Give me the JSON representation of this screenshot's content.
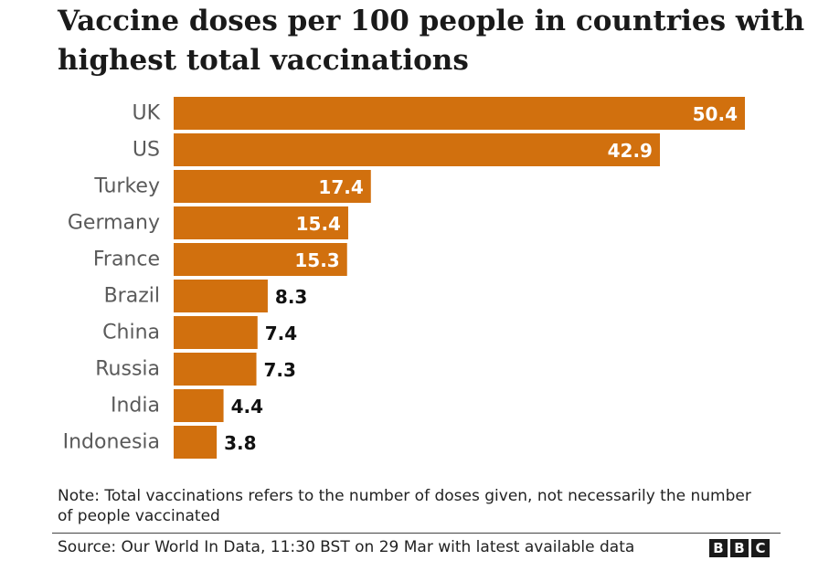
{
  "chart_data": {
    "type": "bar",
    "orientation": "horizontal",
    "title": "Vaccine doses per 100 people in countries with highest total vaccinations",
    "categories": [
      "UK",
      "US",
      "Turkey",
      "Germany",
      "France",
      "Brazil",
      "China",
      "Russia",
      "India",
      "Indonesia"
    ],
    "values": [
      50.4,
      42.9,
      17.4,
      15.4,
      15.3,
      8.3,
      7.4,
      7.3,
      4.4,
      3.8
    ],
    "value_labels": [
      "50.4",
      "42.9",
      "17.4",
      "15.4",
      "15.3",
      "8.3",
      "7.4",
      "7.3",
      "4.4",
      "3.8"
    ],
    "xlim": [
      0,
      50.4
    ],
    "grid": false,
    "legend": "none",
    "bar_color": "#d1700e",
    "label_inside_color": "#ffffff",
    "label_outside_color": "#111111"
  },
  "note": "Note: Total vaccinations refers to the number of doses given, not necessarily the number of people vaccinated",
  "source": "Source: Our World In Data, 11:30 BST on 29 Mar with latest available data",
  "logo": {
    "letters": [
      "B",
      "B",
      "C"
    ]
  }
}
